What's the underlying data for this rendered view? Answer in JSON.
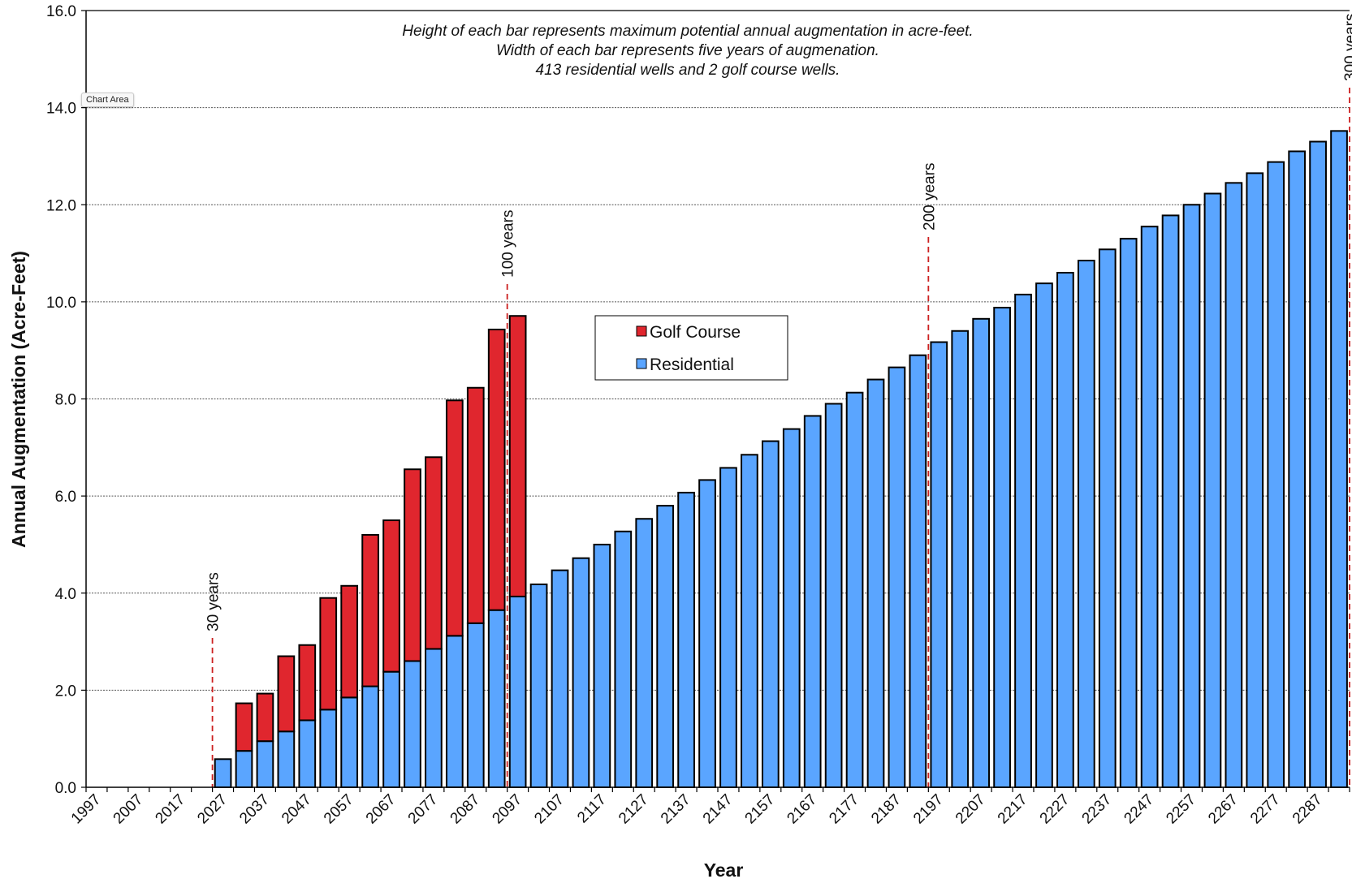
{
  "chart_area_tag": "Chart Area",
  "chart_data": {
    "type": "bar",
    "stacked": true,
    "xlabel": "Year",
    "ylabel": "Annual Augmentation (Acre-Feet)",
    "ylim": [
      0,
      16
    ],
    "yticks": [
      "0.0",
      "2.0",
      "4.0",
      "6.0",
      "8.0",
      "10.0",
      "12.0",
      "14.0",
      "16.0"
    ],
    "grid": true,
    "legend_position": "center",
    "notes": [
      "Height of each bar represents maximum potential annual augmentation in acre-feet.",
      "Width of each bar represents five years of augmenation.",
      "413 residential wells and 2 golf course wells."
    ],
    "categories": [
      "1997",
      "2002",
      "2007",
      "2012",
      "2017",
      "2022",
      "2027",
      "2032",
      "2037",
      "2042",
      "2047",
      "2052",
      "2057",
      "2062",
      "2067",
      "2072",
      "2077",
      "2082",
      "2087",
      "2092",
      "2097",
      "2102",
      "2107",
      "2112",
      "2117",
      "2122",
      "2127",
      "2132",
      "2137",
      "2142",
      "2147",
      "2152",
      "2157",
      "2162",
      "2167",
      "2172",
      "2177",
      "2182",
      "2187",
      "2192",
      "2197",
      "2202",
      "2207",
      "2212",
      "2217",
      "2222",
      "2227",
      "2232",
      "2237",
      "2242",
      "2247",
      "2252",
      "2257",
      "2262",
      "2267",
      "2272",
      "2277",
      "2282",
      "2287",
      "2292"
    ],
    "tick_labels": [
      "1997",
      "2007",
      "2017",
      "2027",
      "2037",
      "2047",
      "2057",
      "2067",
      "2077",
      "2087",
      "2097",
      "2107",
      "2117",
      "2127",
      "2137",
      "2147",
      "2157",
      "2167",
      "2177",
      "2187",
      "2197",
      "2207",
      "2217",
      "2227",
      "2237",
      "2247",
      "2257",
      "2267",
      "2277",
      "2287"
    ],
    "series": [
      {
        "name": "Residential",
        "color": "#5aa5ff",
        "values": [
          0,
          0,
          0,
          0,
          0,
          0,
          0.58,
          0.75,
          0.95,
          1.15,
          1.38,
          1.6,
          1.85,
          2.08,
          2.38,
          2.6,
          2.85,
          3.12,
          3.38,
          3.65,
          3.93,
          4.18,
          4.47,
          4.72,
          5.0,
          5.27,
          5.53,
          5.8,
          6.07,
          6.33,
          6.58,
          6.85,
          7.13,
          7.38,
          7.65,
          7.9,
          8.13,
          8.4,
          8.65,
          8.9,
          9.17,
          9.4,
          9.65,
          9.88,
          10.15,
          10.38,
          10.6,
          10.85,
          11.08,
          11.3,
          11.55,
          11.78,
          12.0,
          12.23,
          12.45,
          12.65,
          12.88,
          13.1,
          13.3,
          13.52
        ]
      },
      {
        "name": "Golf Course",
        "color": "#e0262e",
        "values": [
          0,
          0,
          0,
          0,
          0,
          0,
          0,
          0.98,
          0.98,
          1.55,
          1.55,
          2.3,
          2.3,
          3.12,
          3.12,
          3.95,
          3.95,
          4.85,
          4.85,
          5.78,
          5.78,
          0,
          0,
          0,
          0,
          0,
          0,
          0,
          0,
          0,
          0,
          0,
          0,
          0,
          0,
          0,
          0,
          0,
          0,
          0,
          0,
          0,
          0,
          0,
          0,
          0,
          0,
          0,
          0,
          0,
          0,
          0,
          0,
          0,
          0,
          0,
          0,
          0,
          0,
          0
        ]
      }
    ],
    "markers": [
      {
        "label": "30 years",
        "x_index": 5.5
      },
      {
        "label": "100 years",
        "x_index": 19.5
      },
      {
        "label": "200 years",
        "x_index": 39.5
      },
      {
        "label": "300 years",
        "x_index": 59.5
      }
    ],
    "legend": [
      {
        "label": "Golf Course",
        "color": "#e0262e"
      },
      {
        "label": "Residential",
        "color": "#5aa5ff"
      }
    ]
  }
}
